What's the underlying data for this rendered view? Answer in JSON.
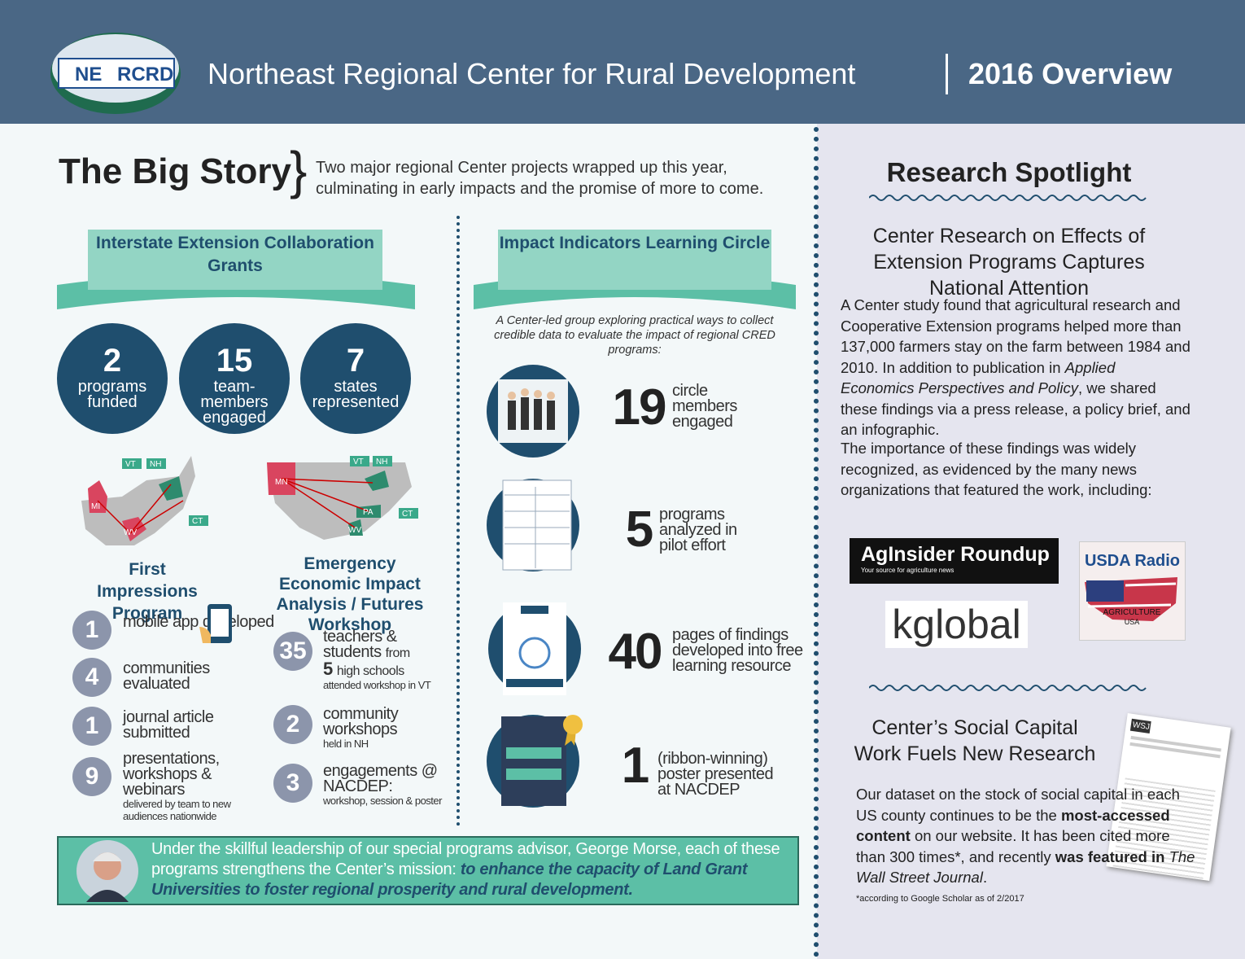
{
  "header": {
    "logo_left": "NE",
    "logo_right": "RCRD",
    "title": "Northeast Regional Center for Rural Development",
    "subtitle": "2016 Overview"
  },
  "big_story": {
    "title": "The Big Story",
    "intro": "Two major regional Center projects wrapped up this year, culminating in early impacts and the promise of more to come."
  },
  "grants": {
    "banner": "Interstate Extension Collaboration Grants",
    "stats": [
      {
        "number": "2",
        "label": "programs funded"
      },
      {
        "number": "15",
        "label": "team-members engaged"
      },
      {
        "number": "7",
        "label": "states represented"
      }
    ],
    "map_left_labels": [
      "VT",
      "NH",
      "MI",
      "CT",
      "WV"
    ],
    "map_right_labels": [
      "VT",
      "NH",
      "MN",
      "PA",
      "CT",
      "WV"
    ]
  },
  "first_impressions": {
    "title": "First Impressions Program",
    "items": [
      {
        "number": "1",
        "text": "mobile app developed"
      },
      {
        "number": "4",
        "text": "communities evaluated"
      },
      {
        "number": "1",
        "text": "journal article submitted"
      },
      {
        "number": "9",
        "text": "presentations, workshops & webinars",
        "note": "delivered by team to new audiences nationwide"
      }
    ]
  },
  "emergency": {
    "title": "Emergency Economic Impact Analysis / Futures Workshop",
    "items": [
      {
        "number": "35",
        "text": "teachers & students",
        "connector": "from",
        "inner_number": "5",
        "inner_text": "high schools",
        "note": "attended workshop in VT"
      },
      {
        "number": "2",
        "text": "community workshops",
        "note": "held in NH"
      },
      {
        "number": "3",
        "text": "engagements @ NACDEP:",
        "note": "workshop, session & poster"
      }
    ]
  },
  "impact": {
    "banner": "Impact Indicators Learning Circle",
    "intro": "A Center-led group exploring practical ways to collect credible data to evaluate the impact of regional CRED programs:",
    "items": [
      {
        "number": "19",
        "text": "circle members engaged"
      },
      {
        "number": "5",
        "text": "programs analyzed in pilot effort"
      },
      {
        "number": "40",
        "text": "pages of findings developed into free learning resource"
      },
      {
        "number": "1",
        "text": "(ribbon-winning) poster presented at NACDEP"
      }
    ]
  },
  "leadership": {
    "text": "Under the skillful leadership of our special programs advisor, George Morse, each of these programs strengthens the Center’s mission: ",
    "mission": "to enhance the capacity of Land Grant Universities to foster regional prosperity and rural development."
  },
  "research": {
    "title": "Research Spotlight",
    "article1": {
      "heading": "Center Research on Effects of Extension Programs Captures National Attention",
      "p1_a": "A Center study found that agricultural research and Cooperative Extension programs helped more than 137,000 farmers stay on the farm between 1984 and 2010. In addition to publication in ",
      "p1_journal": "Applied Economics Perspectives and Policy",
      "p1_b": ", we shared these findings via a press release, a policy brief, and an infographic.",
      "p2": "The importance of these findings was widely recognized, as evidenced by the many news organizations that featured the work, including:"
    },
    "logos": {
      "aginsider": "AgInsider Roundup",
      "aginsider_tag": "Your source for agriculture news",
      "kglobal": "kglobal",
      "usda": "USDA Radio",
      "usda_flag1": "AGRICULTURE",
      "usda_flag2": "USA"
    },
    "article2": {
      "heading": "Center’s Social Capital Work Fuels New Research",
      "p_a": "Our dataset on the stock of social capital in each US county continues to be the ",
      "p_bold1": "most-accessed content",
      "p_b": " on our website. It has been cited more than 300 times*, and recently ",
      "p_bold2": "was featured in ",
      "p_journal": "The Wall Street Journal",
      "p_c": ".",
      "footnote": "*according to Google Scholar as of 2/2017",
      "clip_label": "WSJ"
    }
  }
}
